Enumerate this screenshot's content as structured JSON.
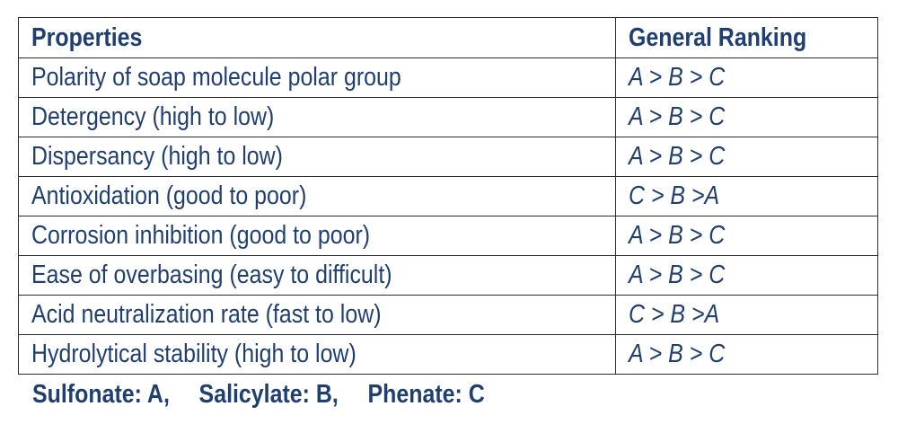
{
  "table": {
    "headers": {
      "properties": "Properties",
      "ranking": "General Ranking"
    },
    "rows": [
      {
        "property": "Polarity of soap molecule polar group",
        "ranking": "A > B > C"
      },
      {
        "property": "Detergency (high to low)",
        "ranking": "A > B > C"
      },
      {
        "property": "Dispersancy (high to low)",
        "ranking": "A > B > C"
      },
      {
        "property": "Antioxidation (good to poor)",
        "ranking": "C > B >A"
      },
      {
        "property": "Corrosion inhibition (good to poor)",
        "ranking": "A > B > C"
      },
      {
        "property": "Ease of overbasing (easy to difficult)",
        "ranking": "A > B > C"
      },
      {
        "property": "Acid neutralization rate (fast to low)",
        "ranking": "C > B >A"
      },
      {
        "property": "Hydrolytical stability (high to low)",
        "ranking": "A > B > C"
      }
    ]
  },
  "legend": {
    "items": [
      "Sulfonate: A,",
      "Salicylate: B,",
      "Phenate: C"
    ]
  },
  "colors": {
    "text": "#1f3f73",
    "border": "#2a2a2a"
  }
}
